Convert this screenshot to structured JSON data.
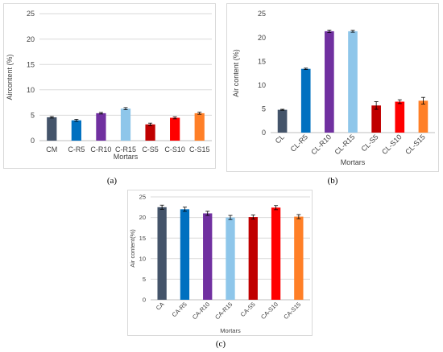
{
  "captions": {
    "a": "(a)",
    "b": "(b)",
    "c": "(c)"
  },
  "colors": {
    "grid": "#d9d9d9",
    "axis": "#bfbfbf",
    "text": "#404040",
    "error_bar": "#000000"
  },
  "chart_data": [
    {
      "type": "bar",
      "title": "",
      "xlabel": "Mortars",
      "ylabel": "Aircontent (%)",
      "ylim": [
        0,
        25
      ],
      "yticks": [
        "0",
        "5",
        "10",
        "15",
        "20",
        "25"
      ],
      "grid": true,
      "categories": [
        "CM",
        "C-R5",
        "C-R10",
        "C-R15",
        "C-S5",
        "C-S10",
        "C-S15"
      ],
      "values": [
        4.6,
        4.0,
        5.4,
        6.3,
        3.2,
        4.5,
        5.4
      ],
      "errors": [
        0.15,
        0.2,
        0.15,
        0.2,
        0.25,
        0.2,
        0.2
      ],
      "bar_colors": [
        "#44546a",
        "#0070c0",
        "#7030a0",
        "#8ec6ea",
        "#c00000",
        "#ff0000",
        "#ff7f27"
      ],
      "rotate_xticks": false
    },
    {
      "type": "bar",
      "title": "",
      "xlabel": "Mortars",
      "ylabel": "Air content (%)",
      "ylim": [
        0,
        25
      ],
      "yticks": [
        "0",
        "5",
        "10",
        "15",
        "20",
        "25"
      ],
      "grid": false,
      "categories": [
        "CL",
        "CL-R5",
        "CL-R10",
        "CL-R15",
        "CL-S5",
        "CL-S10",
        "CL-S15"
      ],
      "values": [
        4.8,
        13.4,
        21.3,
        21.3,
        5.7,
        6.5,
        6.7
      ],
      "errors": [
        0.1,
        0.15,
        0.25,
        0.2,
        0.8,
        0.4,
        0.7
      ],
      "bar_colors": [
        "#44546a",
        "#0070c0",
        "#7030a0",
        "#8ec6ea",
        "#c00000",
        "#ff0000",
        "#ff7f27"
      ],
      "rotate_xticks": true
    },
    {
      "type": "bar",
      "title": "",
      "xlabel": "Mortars",
      "ylabel": "Air content(%)",
      "ylim": [
        0,
        25
      ],
      "yticks": [
        "0",
        "5",
        "10",
        "15",
        "20",
        "25"
      ],
      "grid": true,
      "categories": [
        "CA",
        "CA-R5",
        "CA-R10",
        "CA-R15",
        "CA-S5",
        "CA-S10",
        "CA-S15"
      ],
      "values": [
        22.5,
        22.0,
        21.0,
        20.0,
        20.1,
        22.4,
        20.2
      ],
      "errors": [
        0.5,
        0.5,
        0.5,
        0.5,
        0.5,
        0.5,
        0.5
      ],
      "bar_colors": [
        "#44546a",
        "#0070c0",
        "#7030a0",
        "#8ec6ea",
        "#c00000",
        "#ff0000",
        "#ff7f27"
      ],
      "rotate_xticks": true
    }
  ]
}
